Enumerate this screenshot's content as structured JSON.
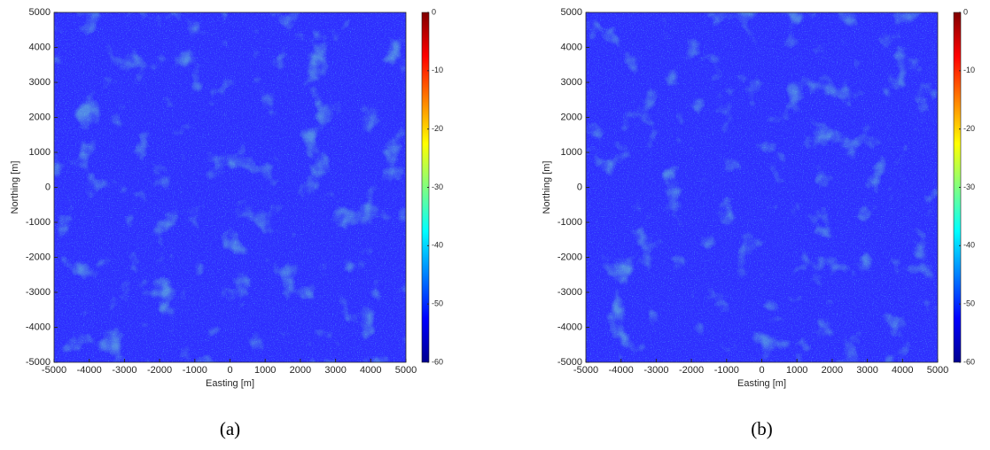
{
  "chart_data": [
    {
      "type": "image",
      "xlabel": "Easting [m]",
      "ylabel": "Northing [m]",
      "caption": "(a)",
      "xlim": [
        -5000,
        5000
      ],
      "ylim": [
        -5000,
        5000
      ],
      "xticks": [
        -5000,
        -4000,
        -3000,
        -2000,
        -1000,
        0,
        1000,
        2000,
        3000,
        4000,
        5000
      ],
      "yticks": [
        -5000,
        -4000,
        -3000,
        -2000,
        -1000,
        0,
        1000,
        2000,
        3000,
        4000,
        5000
      ],
      "clim": [
        -60,
        0
      ],
      "cticks": [
        -60,
        -50,
        -40,
        -30,
        -20,
        -10,
        0
      ],
      "colormap": [
        "#00008f",
        "#0000ff",
        "#0080ff",
        "#00ffff",
        "#80ff80",
        "#ffff00",
        "#ff8000",
        "#ff0000",
        "#800000"
      ]
    },
    {
      "type": "image",
      "xlabel": "Easting [m]",
      "ylabel": "Northing [m]",
      "caption": "(b)",
      "xlim": [
        -5000,
        5000
      ],
      "ylim": [
        -5000,
        5000
      ],
      "xticks": [
        -5000,
        -4000,
        -3000,
        -2000,
        -1000,
        0,
        1000,
        2000,
        3000,
        4000,
        5000
      ],
      "yticks": [
        -5000,
        -4000,
        -3000,
        -2000,
        -1000,
        0,
        1000,
        2000,
        3000,
        4000,
        5000
      ],
      "clim": [
        -60,
        0
      ],
      "cticks": [
        -60,
        -50,
        -40,
        -30,
        -20,
        -10,
        0
      ],
      "colormap": [
        "#00008f",
        "#0000ff",
        "#0080ff",
        "#00ffff",
        "#80ff80",
        "#ffff00",
        "#ff8000",
        "#ff0000",
        "#800000"
      ]
    }
  ]
}
